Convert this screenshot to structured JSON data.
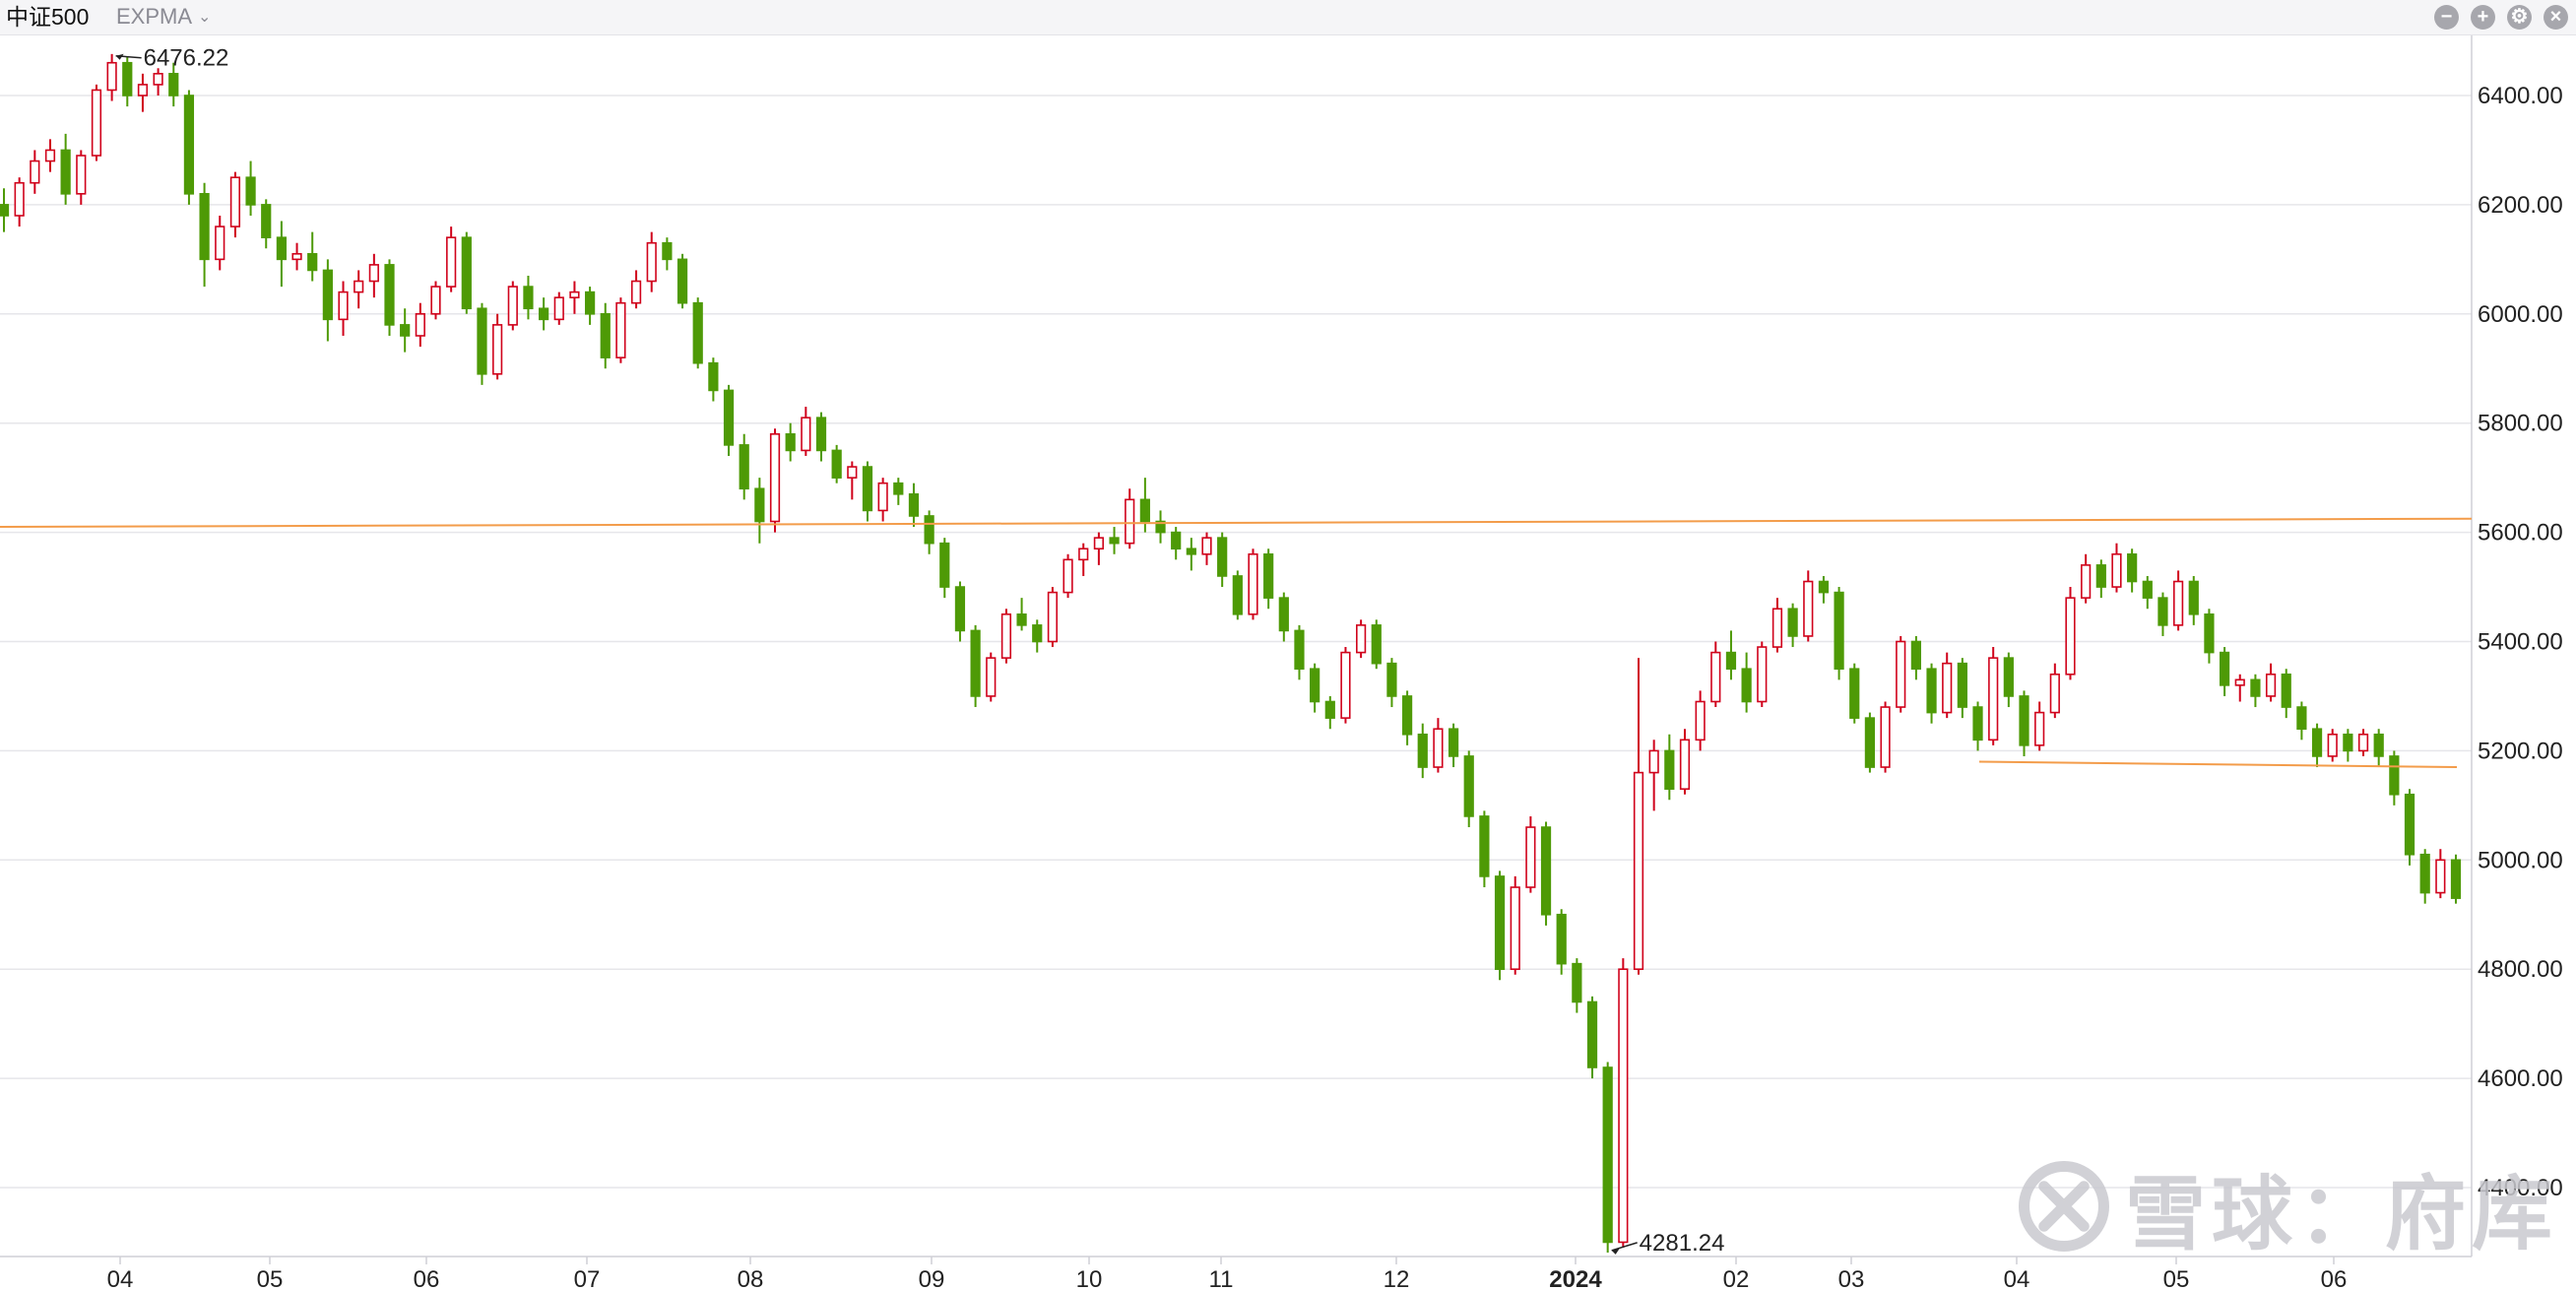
{
  "toolbar": {
    "symbol": "中证500",
    "indicator": "EXPMA",
    "caret_icon": "chevron-down-icon",
    "buttons": [
      {
        "name": "zoom-out-button",
        "icon": "minus-circle-icon",
        "glyph": "−"
      },
      {
        "name": "zoom-in-button",
        "icon": "plus-circle-icon",
        "glyph": "+"
      },
      {
        "name": "settings-button",
        "icon": "gear-icon",
        "glyph": "⚙"
      },
      {
        "name": "close-button",
        "icon": "close-icon",
        "glyph": "×"
      }
    ]
  },
  "watermark": {
    "logo_icon": "xueqiu-logo-icon",
    "text": "雪球：府库"
  },
  "colors": {
    "up": "#d0021b",
    "down": "#4e9a06",
    "trendline": "#f39c4a",
    "grid": "#e6e6ea",
    "axis_text": "#222222"
  },
  "chart_data": {
    "type": "candlestick",
    "ylim": [
      4281.24,
      6476.22
    ],
    "y_ticks": [
      "6400.00",
      "6200.00",
      "6000.00",
      "5800.00",
      "5600.00",
      "5400.00",
      "5200.00",
      "5000.00",
      "4800.00",
      "4600.00",
      "4400.00"
    ],
    "x_ticks": [
      "04",
      "05",
      "06",
      "07",
      "08",
      "09",
      "10",
      "11",
      "12",
      "2024",
      "02",
      "03",
      "04",
      "05",
      "06"
    ],
    "grid": true,
    "annotations": [
      {
        "label": "6476.22",
        "value": 6476.22,
        "kind": "high"
      },
      {
        "label": "4281.24",
        "value": 4281.24,
        "kind": "low"
      }
    ],
    "trendlines": [
      {
        "y_start": 5610,
        "y_end": 5625
      },
      {
        "y_start": 5180,
        "y_end": 5170
      }
    ],
    "candles": [
      [
        6200,
        6230,
        6150,
        6180
      ],
      [
        6180,
        6250,
        6160,
        6240
      ],
      [
        6240,
        6300,
        6220,
        6280
      ],
      [
        6280,
        6320,
        6260,
        6300
      ],
      [
        6300,
        6330,
        6200,
        6220
      ],
      [
        6220,
        6300,
        6200,
        6290
      ],
      [
        6290,
        6420,
        6280,
        6410
      ],
      [
        6410,
        6476,
        6390,
        6460
      ],
      [
        6460,
        6470,
        6380,
        6400
      ],
      [
        6400,
        6440,
        6370,
        6420
      ],
      [
        6420,
        6450,
        6400,
        6440
      ],
      [
        6440,
        6460,
        6380,
        6400
      ],
      [
        6400,
        6410,
        6200,
        6220
      ],
      [
        6220,
        6240,
        6050,
        6100
      ],
      [
        6100,
        6180,
        6080,
        6160
      ],
      [
        6160,
        6260,
        6140,
        6250
      ],
      [
        6250,
        6280,
        6180,
        6200
      ],
      [
        6200,
        6210,
        6120,
        6140
      ],
      [
        6140,
        6170,
        6050,
        6100
      ],
      [
        6100,
        6130,
        6080,
        6110
      ],
      [
        6110,
        6150,
        6060,
        6080
      ],
      [
        6080,
        6100,
        5950,
        5990
      ],
      [
        5990,
        6060,
        5960,
        6040
      ],
      [
        6040,
        6080,
        6010,
        6060
      ],
      [
        6060,
        6110,
        6030,
        6090
      ],
      [
        6090,
        6100,
        5960,
        5980
      ],
      [
        5980,
        6010,
        5930,
        5960
      ],
      [
        5960,
        6020,
        5940,
        6000
      ],
      [
        6000,
        6060,
        5990,
        6050
      ],
      [
        6050,
        6160,
        6040,
        6140
      ],
      [
        6140,
        6150,
        6000,
        6010
      ],
      [
        6010,
        6020,
        5870,
        5890
      ],
      [
        5890,
        6000,
        5880,
        5980
      ],
      [
        5980,
        6060,
        5970,
        6050
      ],
      [
        6050,
        6070,
        5990,
        6010
      ],
      [
        6010,
        6030,
        5970,
        5990
      ],
      [
        5990,
        6040,
        5980,
        6030
      ],
      [
        6030,
        6060,
        6000,
        6040
      ],
      [
        6040,
        6050,
        5980,
        6000
      ],
      [
        6000,
        6020,
        5900,
        5920
      ],
      [
        5920,
        6030,
        5910,
        6020
      ],
      [
        6020,
        6080,
        6010,
        6060
      ],
      [
        6060,
        6150,
        6040,
        6130
      ],
      [
        6130,
        6140,
        6080,
        6100
      ],
      [
        6100,
        6110,
        6010,
        6020
      ],
      [
        6020,
        6030,
        5900,
        5910
      ],
      [
        5910,
        5920,
        5840,
        5860
      ],
      [
        5860,
        5870,
        5740,
        5760
      ],
      [
        5760,
        5780,
        5660,
        5680
      ],
      [
        5680,
        5700,
        5580,
        5620
      ],
      [
        5620,
        5790,
        5600,
        5780
      ],
      [
        5780,
        5800,
        5730,
        5750
      ],
      [
        5750,
        5830,
        5740,
        5810
      ],
      [
        5810,
        5820,
        5730,
        5750
      ],
      [
        5750,
        5760,
        5690,
        5700
      ],
      [
        5700,
        5730,
        5660,
        5720
      ],
      [
        5720,
        5730,
        5620,
        5640
      ],
      [
        5640,
        5700,
        5620,
        5690
      ],
      [
        5690,
        5700,
        5650,
        5670
      ],
      [
        5670,
        5690,
        5610,
        5630
      ],
      [
        5630,
        5640,
        5560,
        5580
      ],
      [
        5580,
        5590,
        5480,
        5500
      ],
      [
        5500,
        5510,
        5400,
        5420
      ],
      [
        5420,
        5430,
        5280,
        5300
      ],
      [
        5300,
        5380,
        5290,
        5370
      ],
      [
        5370,
        5460,
        5360,
        5450
      ],
      [
        5450,
        5480,
        5420,
        5430
      ],
      [
        5430,
        5440,
        5380,
        5400
      ],
      [
        5400,
        5500,
        5390,
        5490
      ],
      [
        5490,
        5560,
        5480,
        5550
      ],
      [
        5550,
        5580,
        5520,
        5570
      ],
      [
        5570,
        5600,
        5540,
        5590
      ],
      [
        5590,
        5610,
        5560,
        5580
      ],
      [
        5580,
        5680,
        5570,
        5660
      ],
      [
        5660,
        5700,
        5600,
        5620
      ],
      [
        5620,
        5640,
        5580,
        5600
      ],
      [
        5600,
        5610,
        5550,
        5570
      ],
      [
        5570,
        5590,
        5530,
        5560
      ],
      [
        5560,
        5600,
        5540,
        5590
      ],
      [
        5590,
        5600,
        5500,
        5520
      ],
      [
        5520,
        5530,
        5440,
        5450
      ],
      [
        5450,
        5570,
        5440,
        5560
      ],
      [
        5560,
        5570,
        5460,
        5480
      ],
      [
        5480,
        5490,
        5400,
        5420
      ],
      [
        5420,
        5430,
        5330,
        5350
      ],
      [
        5350,
        5360,
        5270,
        5290
      ],
      [
        5290,
        5300,
        5240,
        5260
      ],
      [
        5260,
        5390,
        5250,
        5380
      ],
      [
        5380,
        5440,
        5370,
        5430
      ],
      [
        5430,
        5440,
        5350,
        5360
      ],
      [
        5360,
        5370,
        5280,
        5300
      ],
      [
        5300,
        5310,
        5210,
        5230
      ],
      [
        5230,
        5250,
        5150,
        5170
      ],
      [
        5170,
        5260,
        5160,
        5240
      ],
      [
        5240,
        5250,
        5170,
        5190
      ],
      [
        5190,
        5200,
        5060,
        5080
      ],
      [
        5080,
        5090,
        4950,
        4970
      ],
      [
        4970,
        4980,
        4780,
        4800
      ],
      [
        4800,
        4970,
        4790,
        4950
      ],
      [
        4950,
        5080,
        4940,
        5060
      ],
      [
        5060,
        5070,
        4880,
        4900
      ],
      [
        4900,
        4910,
        4790,
        4810
      ],
      [
        4810,
        4820,
        4720,
        4740
      ],
      [
        4740,
        4750,
        4600,
        4620
      ],
      [
        4620,
        4630,
        4281,
        4300
      ],
      [
        4300,
        4820,
        4290,
        4800
      ],
      [
        4800,
        5370,
        4790,
        5160
      ],
      [
        5160,
        5220,
        5090,
        5200
      ],
      [
        5200,
        5230,
        5110,
        5130
      ],
      [
        5130,
        5240,
        5120,
        5220
      ],
      [
        5220,
        5310,
        5200,
        5290
      ],
      [
        5290,
        5400,
        5280,
        5380
      ],
      [
        5380,
        5420,
        5330,
        5350
      ],
      [
        5350,
        5380,
        5270,
        5290
      ],
      [
        5290,
        5400,
        5280,
        5390
      ],
      [
        5390,
        5480,
        5380,
        5460
      ],
      [
        5460,
        5470,
        5390,
        5410
      ],
      [
        5410,
        5530,
        5400,
        5510
      ],
      [
        5510,
        5520,
        5470,
        5490
      ],
      [
        5490,
        5500,
        5330,
        5350
      ],
      [
        5350,
        5360,
        5250,
        5260
      ],
      [
        5260,
        5270,
        5160,
        5170
      ],
      [
        5170,
        5290,
        5160,
        5280
      ],
      [
        5280,
        5410,
        5270,
        5400
      ],
      [
        5400,
        5410,
        5330,
        5350
      ],
      [
        5350,
        5360,
        5250,
        5270
      ],
      [
        5270,
        5380,
        5260,
        5360
      ],
      [
        5360,
        5370,
        5260,
        5280
      ],
      [
        5280,
        5290,
        5200,
        5220
      ],
      [
        5220,
        5390,
        5210,
        5370
      ],
      [
        5370,
        5380,
        5280,
        5300
      ],
      [
        5300,
        5310,
        5190,
        5210
      ],
      [
        5210,
        5290,
        5200,
        5270
      ],
      [
        5270,
        5360,
        5260,
        5340
      ],
      [
        5340,
        5500,
        5330,
        5480
      ],
      [
        5480,
        5560,
        5470,
        5540
      ],
      [
        5540,
        5550,
        5480,
        5500
      ],
      [
        5500,
        5580,
        5490,
        5560
      ],
      [
        5560,
        5570,
        5490,
        5510
      ],
      [
        5510,
        5520,
        5460,
        5480
      ],
      [
        5480,
        5490,
        5410,
        5430
      ],
      [
        5430,
        5530,
        5420,
        5510
      ],
      [
        5510,
        5520,
        5430,
        5450
      ],
      [
        5450,
        5460,
        5360,
        5380
      ],
      [
        5380,
        5390,
        5300,
        5320
      ],
      [
        5320,
        5340,
        5290,
        5330
      ],
      [
        5330,
        5340,
        5280,
        5300
      ],
      [
        5300,
        5360,
        5290,
        5340
      ],
      [
        5340,
        5350,
        5260,
        5280
      ],
      [
        5280,
        5290,
        5220,
        5240
      ],
      [
        5240,
        5250,
        5170,
        5190
      ],
      [
        5190,
        5240,
        5180,
        5230
      ],
      [
        5230,
        5240,
        5180,
        5200
      ],
      [
        5200,
        5240,
        5190,
        5230
      ],
      [
        5230,
        5240,
        5170,
        5190
      ],
      [
        5190,
        5200,
        5100,
        5120
      ],
      [
        5120,
        5130,
        4990,
        5010
      ],
      [
        5010,
        5020,
        4920,
        4940
      ],
      [
        4940,
        5020,
        4930,
        5000
      ],
      [
        5000,
        5010,
        4920,
        4930
      ]
    ]
  }
}
